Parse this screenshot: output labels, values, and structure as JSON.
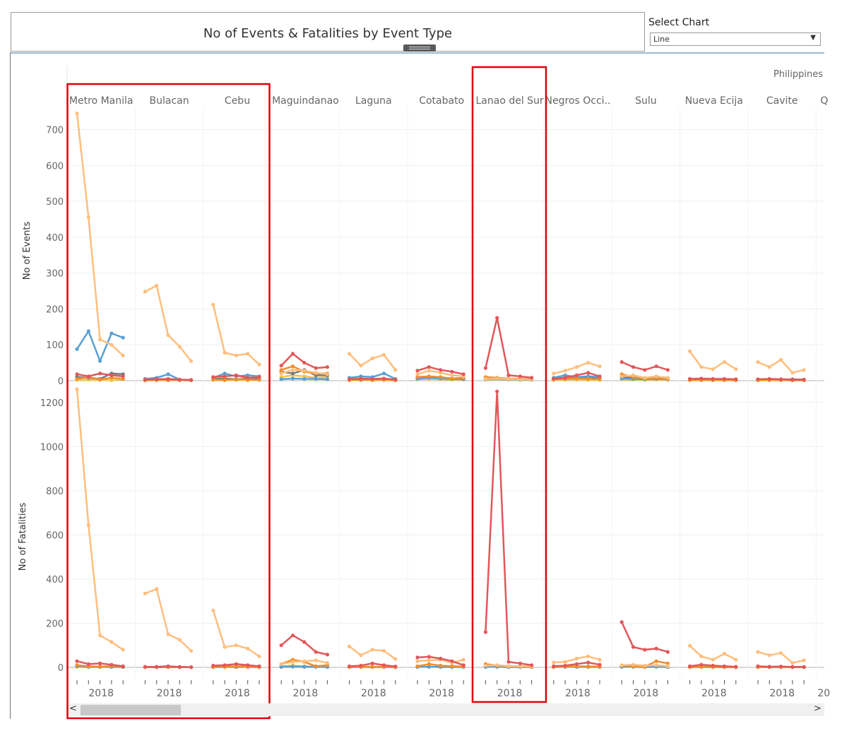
{
  "title": "No of Events & Fatalities by Event Type",
  "select": {
    "label": "Select Chart",
    "value": "Line"
  },
  "chart_data": {
    "type": "line",
    "country": "Philippines",
    "x_tick_label": "2018",
    "ylabel_top": "No of Events",
    "ylabel_bottom": "No of Fatalities",
    "events_axis": {
      "ylim": [
        0,
        760
      ],
      "ticks": [
        0,
        100,
        200,
        300,
        400,
        500,
        600,
        700
      ]
    },
    "fatalities_axis": {
      "ylim": [
        0,
        1270
      ],
      "ticks": [
        0,
        200,
        400,
        600,
        800,
        1000,
        1200
      ]
    },
    "series_colors": [
      "#ffbe7d",
      "#5aa0d2",
      "#e15759",
      "#76787f",
      "#f28e2b",
      "#edc948"
    ],
    "panels": [
      {
        "name": "Metro Manila",
        "events": [
          [
            745,
            455,
            115,
            100,
            70
          ],
          [
            88,
            138,
            55,
            132,
            120
          ],
          [
            18,
            12,
            20,
            15,
            12
          ],
          [
            10,
            8,
            5,
            20,
            18
          ],
          [
            5,
            10,
            3,
            8,
            5
          ],
          [
            2,
            3,
            2,
            1,
            4
          ]
        ],
        "fatalities": [
          [
            1260,
            645,
            145,
            115,
            80
          ],
          [
            5,
            3,
            4,
            2,
            3
          ],
          [
            28,
            15,
            18,
            12,
            5
          ],
          [
            8,
            3,
            2,
            4,
            2
          ],
          [
            10,
            5,
            3,
            6,
            4
          ],
          [
            2,
            1,
            2,
            1,
            1
          ]
        ]
      },
      {
        "name": "Bulacan",
        "events": [
          [
            248,
            265,
            127,
            95,
            55
          ],
          [
            5,
            8,
            18,
            3,
            2
          ],
          [
            3,
            4,
            5,
            3,
            2
          ],
          [
            2,
            3,
            4,
            2,
            1
          ],
          [
            1,
            2,
            1,
            2,
            1
          ],
          [
            1,
            1,
            2,
            1,
            1
          ]
        ],
        "fatalities": [
          [
            335,
            355,
            150,
            125,
            75
          ],
          [
            2,
            3,
            5,
            2,
            1
          ],
          [
            3,
            2,
            4,
            2,
            1
          ],
          [
            1,
            1,
            2,
            1,
            1
          ],
          [
            1,
            2,
            1,
            1,
            1
          ],
          [
            1,
            1,
            1,
            1,
            1
          ]
        ]
      },
      {
        "name": "Cebu",
        "events": [
          [
            212,
            78,
            70,
            75,
            45
          ],
          [
            8,
            20,
            12,
            15,
            12
          ],
          [
            10,
            12,
            15,
            8,
            10
          ],
          [
            5,
            6,
            4,
            6,
            5
          ],
          [
            3,
            2,
            4,
            3,
            2
          ],
          [
            2,
            1,
            2,
            1,
            3
          ]
        ],
        "fatalities": [
          [
            258,
            92,
            100,
            85,
            50
          ],
          [
            3,
            5,
            4,
            6,
            4
          ],
          [
            8,
            10,
            15,
            10,
            5
          ],
          [
            2,
            3,
            2,
            3,
            2
          ],
          [
            1,
            2,
            4,
            2,
            1
          ],
          [
            1,
            1,
            1,
            1,
            1
          ]
        ]
      },
      {
        "name": "Maguindanao",
        "events": [
          [
            20,
            30,
            28,
            22,
            18
          ],
          [
            4,
            6,
            5,
            5,
            4
          ],
          [
            42,
            75,
            50,
            35,
            38
          ],
          [
            25,
            20,
            30,
            15,
            15
          ],
          [
            30,
            40,
            25,
            20,
            20
          ],
          [
            10,
            15,
            12,
            8,
            10
          ]
        ],
        "fatalities": [
          [
            15,
            25,
            28,
            32,
            20
          ],
          [
            2,
            3,
            2,
            2,
            2
          ],
          [
            100,
            145,
            115,
            70,
            58
          ],
          [
            3,
            4,
            3,
            3,
            2
          ],
          [
            15,
            35,
            25,
            5,
            10
          ],
          [
            5,
            8,
            5,
            3,
            4
          ]
        ]
      },
      {
        "name": "Laguna",
        "events": [
          [
            75,
            42,
            62,
            72,
            30
          ],
          [
            8,
            12,
            10,
            20,
            5
          ],
          [
            4,
            6,
            5,
            6,
            3
          ],
          [
            3,
            2,
            3,
            4,
            2
          ],
          [
            2,
            3,
            2,
            2,
            1
          ],
          [
            1,
            2,
            1,
            2,
            1
          ]
        ],
        "fatalities": [
          [
            95,
            55,
            80,
            75,
            38
          ],
          [
            2,
            3,
            2,
            3,
            2
          ],
          [
            5,
            8,
            18,
            10,
            4
          ],
          [
            2,
            2,
            2,
            2,
            1
          ],
          [
            2,
            3,
            2,
            2,
            1
          ],
          [
            1,
            1,
            1,
            1,
            1
          ]
        ]
      },
      {
        "name": "Cotabato",
        "events": [
          [
            18,
            28,
            22,
            15,
            12
          ],
          [
            5,
            8,
            6,
            5,
            4
          ],
          [
            28,
            38,
            30,
            25,
            18
          ],
          [
            8,
            10,
            8,
            5,
            6
          ],
          [
            10,
            12,
            10,
            6,
            8
          ],
          [
            4,
            5,
            4,
            3,
            3
          ]
        ],
        "fatalities": [
          [
            28,
            32,
            35,
            20,
            35
          ],
          [
            2,
            3,
            2,
            2,
            2
          ],
          [
            45,
            48,
            40,
            28,
            10
          ],
          [
            3,
            3,
            2,
            2,
            2
          ],
          [
            5,
            15,
            8,
            5,
            4
          ],
          [
            2,
            3,
            2,
            2,
            1
          ]
        ]
      },
      {
        "name": "Lanao del Sur",
        "events": [
          [
            5,
            6,
            5,
            4,
            4
          ],
          [
            4,
            5,
            4,
            3,
            3
          ],
          [
            35,
            175,
            15,
            12,
            8
          ],
          [
            8,
            6,
            5,
            5,
            4
          ],
          [
            10,
            8,
            6,
            5,
            5
          ],
          [
            3,
            4,
            3,
            2,
            2
          ]
        ],
        "fatalities": [
          [
            8,
            10,
            6,
            5,
            5
          ],
          [
            2,
            3,
            2,
            2,
            2
          ],
          [
            160,
            1250,
            25,
            18,
            10
          ],
          [
            3,
            3,
            2,
            2,
            2
          ],
          [
            15,
            8,
            5,
            4,
            3
          ],
          [
            2,
            2,
            1,
            1,
            1
          ]
        ]
      },
      {
        "name": "Negros Occi..",
        "events": [
          [
            20,
            28,
            38,
            50,
            40
          ],
          [
            8,
            15,
            10,
            12,
            10
          ],
          [
            5,
            8,
            15,
            22,
            12
          ],
          [
            6,
            8,
            6,
            10,
            8
          ],
          [
            4,
            5,
            6,
            5,
            4
          ],
          [
            2,
            3,
            3,
            2,
            2
          ]
        ],
        "fatalities": [
          [
            22,
            25,
            40,
            50,
            35
          ],
          [
            2,
            3,
            2,
            3,
            2
          ],
          [
            5,
            8,
            15,
            22,
            12
          ],
          [
            3,
            3,
            3,
            4,
            3
          ],
          [
            3,
            4,
            5,
            4,
            3
          ],
          [
            1,
            2,
            2,
            1,
            1
          ]
        ]
      },
      {
        "name": "Sulu",
        "events": [
          [
            12,
            15,
            8,
            12,
            8
          ],
          [
            6,
            5,
            4,
            5,
            4
          ],
          [
            52,
            38,
            30,
            40,
            30
          ],
          [
            10,
            8,
            6,
            8,
            6
          ],
          [
            18,
            10,
            6,
            8,
            5
          ],
          [
            4,
            3,
            2,
            3,
            2
          ]
        ],
        "fatalities": [
          [
            10,
            12,
            8,
            10,
            6
          ],
          [
            3,
            3,
            2,
            3,
            2
          ],
          [
            205,
            92,
            80,
            85,
            70
          ],
          [
            4,
            4,
            3,
            4,
            3
          ],
          [
            8,
            5,
            3,
            28,
            18
          ],
          [
            2,
            2,
            1,
            2,
            1
          ]
        ]
      },
      {
        "name": "Nueva Ecija",
        "events": [
          [
            82,
            38,
            32,
            52,
            32
          ],
          [
            3,
            4,
            3,
            4,
            3
          ],
          [
            5,
            6,
            5,
            5,
            4
          ],
          [
            3,
            3,
            2,
            3,
            2
          ],
          [
            2,
            2,
            2,
            2,
            1
          ],
          [
            1,
            1,
            1,
            1,
            1
          ]
        ],
        "fatalities": [
          [
            98,
            50,
            35,
            62,
            35
          ],
          [
            2,
            2,
            2,
            2,
            2
          ],
          [
            5,
            12,
            8,
            5,
            3
          ],
          [
            2,
            2,
            2,
            2,
            1
          ],
          [
            1,
            2,
            1,
            1,
            1
          ],
          [
            1,
            1,
            1,
            1,
            1
          ]
        ]
      },
      {
        "name": "Cavite",
        "events": [
          [
            52,
            38,
            58,
            22,
            30
          ],
          [
            3,
            4,
            3,
            4,
            3
          ],
          [
            4,
            5,
            4,
            3,
            3
          ],
          [
            2,
            3,
            2,
            3,
            2
          ],
          [
            2,
            2,
            2,
            1,
            1
          ],
          [
            1,
            1,
            1,
            1,
            1
          ]
        ],
        "fatalities": [
          [
            70,
            55,
            65,
            20,
            32
          ],
          [
            2,
            2,
            2,
            2,
            2
          ],
          [
            5,
            3,
            4,
            2,
            2
          ],
          [
            2,
            2,
            2,
            2,
            1
          ],
          [
            1,
            2,
            1,
            1,
            1
          ],
          [
            1,
            1,
            1,
            1,
            1
          ]
        ]
      },
      {
        "name": "Q",
        "events": [],
        "fatalities": []
      }
    ]
  }
}
